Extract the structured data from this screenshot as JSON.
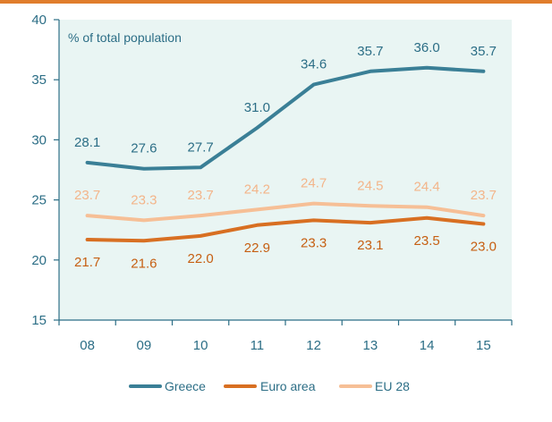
{
  "chart_data": {
    "type": "line",
    "title": "",
    "ylabel": "% of total population",
    "xlabel": "",
    "categories": [
      "08",
      "09",
      "10",
      "11",
      "12",
      "13",
      "14",
      "15"
    ],
    "yticks": [
      15,
      20,
      25,
      30,
      35,
      40
    ],
    "ylim": [
      15,
      40
    ],
    "grid": false,
    "legend": "bottom",
    "series": [
      {
        "name": "Greece",
        "color": "#3a7f96",
        "label_color": "#2c6e86",
        "label_position": "above",
        "values": [
          28.1,
          27.6,
          27.7,
          31.0,
          34.6,
          35.7,
          36.0,
          35.7
        ],
        "labels": [
          "28.1",
          "27.6",
          "27.7",
          "31.0",
          "34.6",
          "35.7",
          "36.0",
          "35.7"
        ]
      },
      {
        "name": "Euro area",
        "color": "#d86f22",
        "label_color": "#c65f12",
        "label_position": "below",
        "values": [
          21.7,
          21.6,
          22.0,
          22.9,
          23.3,
          23.1,
          23.5,
          23.0
        ],
        "labels": [
          "21.7",
          "21.6",
          "22.0",
          "22.9",
          "23.3",
          "23.1",
          "23.5",
          "23.0"
        ]
      },
      {
        "name": "EU 28",
        "color": "#f6bf96",
        "label_color": "#f3b58a",
        "label_position": "above",
        "values": [
          23.7,
          23.3,
          23.7,
          24.2,
          24.7,
          24.5,
          24.4,
          23.7
        ],
        "labels": [
          "23.7",
          "23.3",
          "23.7",
          "24.2",
          "24.7",
          "24.5",
          "24.4",
          "23.7"
        ]
      }
    ]
  },
  "colors": {
    "plot_background": "#e9f5f3",
    "axis": "#2c6e86",
    "top_rule": "#e07d2c"
  }
}
